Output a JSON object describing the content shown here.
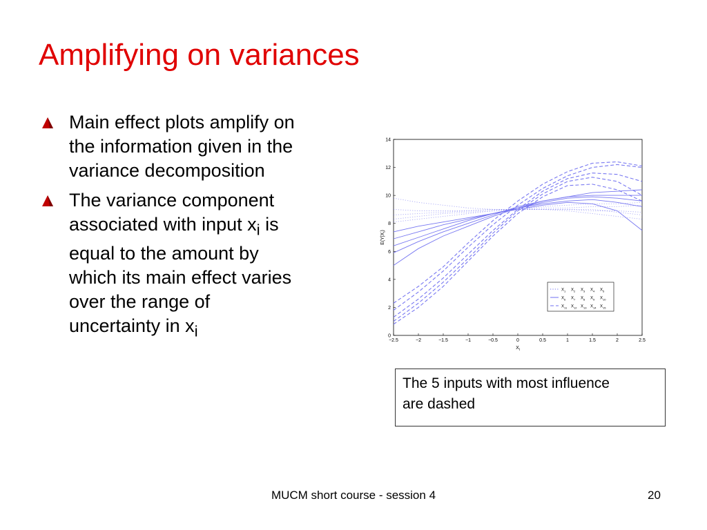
{
  "slide": {
    "title": "Amplifying on variances",
    "title_color": "#e00000",
    "bullet_color": "#c00000",
    "bullets": [
      {
        "lines": [
          "Main effect plots amplify on",
          "the information given in the",
          "variance decomposition"
        ]
      },
      {
        "lines": [
          "The variance component",
          "associated with input x",
          "i",
          " is",
          "equal to the amount by",
          "which its main effect varies",
          "over the range of",
          "uncertainty in x",
          "i"
        ]
      }
    ],
    "caption": {
      "line1": "The 5 inputs with most influence",
      "line2": "are dashed"
    },
    "footer": "MUCM short course - session 4",
    "page_number": "20"
  },
  "chart_data": {
    "type": "line",
    "xlabel": "X",
    "xlabel_sub": "i",
    "ylabel": "E(Y|X",
    "ylabel_sub": "i",
    "ylabel_end": ")",
    "xlim": [
      -2.5,
      2.5
    ],
    "ylim": [
      0,
      14
    ],
    "x_ticks": [
      "-2.5",
      "-2",
      "-1.5",
      "-1",
      "-0.5",
      "0",
      "0.5",
      "1",
      "1.5",
      "2",
      "2.5"
    ],
    "y_ticks": [
      "0",
      "2",
      "4",
      "6",
      "8",
      "10",
      "12",
      "14"
    ],
    "line_color": "#6f6ff0",
    "x": [
      -2.5,
      -2,
      -1.5,
      -1,
      -0.5,
      0,
      0.5,
      1,
      1.5,
      2,
      2.5
    ],
    "series": [
      {
        "style": "dashed",
        "values": [
          2.3,
          3.5,
          4.9,
          6.6,
          8.2,
          9.6,
          10.8,
          11.7,
          12.3,
          12.4,
          12.1
        ]
      },
      {
        "style": "dashed",
        "values": [
          1.8,
          3.1,
          4.6,
          6.3,
          7.9,
          9.3,
          10.5,
          11.4,
          12.0,
          12.2,
          12.0
        ]
      },
      {
        "style": "dashed",
        "values": [
          1.3,
          2.6,
          4.1,
          5.8,
          7.5,
          9.0,
          10.3,
          11.2,
          11.6,
          11.5,
          11.0
        ]
      },
      {
        "style": "dashed",
        "values": [
          1.0,
          2.3,
          3.8,
          5.5,
          7.3,
          8.9,
          10.1,
          11.0,
          11.3,
          11.0,
          10.0
        ]
      },
      {
        "style": "dashed",
        "values": [
          0.8,
          2.0,
          3.5,
          5.3,
          7.1,
          8.7,
          9.9,
          10.7,
          10.8,
          10.4,
          9.6
        ]
      },
      {
        "style": "solid",
        "values": [
          5.0,
          6.2,
          7.1,
          7.8,
          8.5,
          9.1,
          9.6,
          9.9,
          10.2,
          10.3,
          10.4
        ]
      },
      {
        "style": "solid",
        "values": [
          5.9,
          6.7,
          7.4,
          8.0,
          8.6,
          9.2,
          9.6,
          9.9,
          10.0,
          10.0,
          10.0
        ]
      },
      {
        "style": "solid",
        "values": [
          6.4,
          7.0,
          7.6,
          8.2,
          8.7,
          9.1,
          9.5,
          9.8,
          9.9,
          9.8,
          9.6
        ]
      },
      {
        "style": "solid",
        "values": [
          6.9,
          7.4,
          7.9,
          8.3,
          8.7,
          9.1,
          9.4,
          9.6,
          9.7,
          9.5,
          9.2
        ]
      },
      {
        "style": "solid",
        "values": [
          7.4,
          7.8,
          8.1,
          8.4,
          8.7,
          9.0,
          9.3,
          9.5,
          9.4,
          8.9,
          7.5
        ]
      },
      {
        "style": "dotted",
        "values": [
          8.1,
          8.3,
          8.5,
          8.7,
          8.9,
          9.0,
          9.2,
          9.3,
          9.4,
          9.4,
          9.5
        ]
      },
      {
        "style": "dotted",
        "values": [
          9.0,
          8.9,
          8.9,
          8.9,
          9.0,
          9.0,
          9.0,
          9.0,
          8.9,
          8.9,
          8.8
        ]
      },
      {
        "style": "dotted",
        "values": [
          9.8,
          9.5,
          9.3,
          9.1,
          9.0,
          9.0,
          9.0,
          8.9,
          8.7,
          8.5,
          8.3
        ]
      },
      {
        "style": "dotted",
        "values": [
          8.6,
          8.7,
          8.8,
          8.9,
          9.0,
          9.0,
          9.1,
          9.1,
          9.2,
          9.2,
          9.3
        ]
      },
      {
        "style": "dotted",
        "values": [
          8.3,
          8.5,
          8.7,
          8.8,
          8.9,
          9.0,
          9.0,
          9.0,
          9.0,
          8.8,
          8.6
        ]
      }
    ],
    "legend": {
      "placement": "bottom-right",
      "rows": [
        {
          "style": "dotted",
          "labels": [
            "1",
            "2",
            "3",
            "4",
            "5"
          ]
        },
        {
          "style": "solid",
          "labels": [
            "6",
            "7",
            "8",
            "9",
            "10"
          ]
        },
        {
          "style": "dashed",
          "labels": [
            "11",
            "12",
            "13",
            "14",
            "15"
          ]
        }
      ]
    }
  }
}
